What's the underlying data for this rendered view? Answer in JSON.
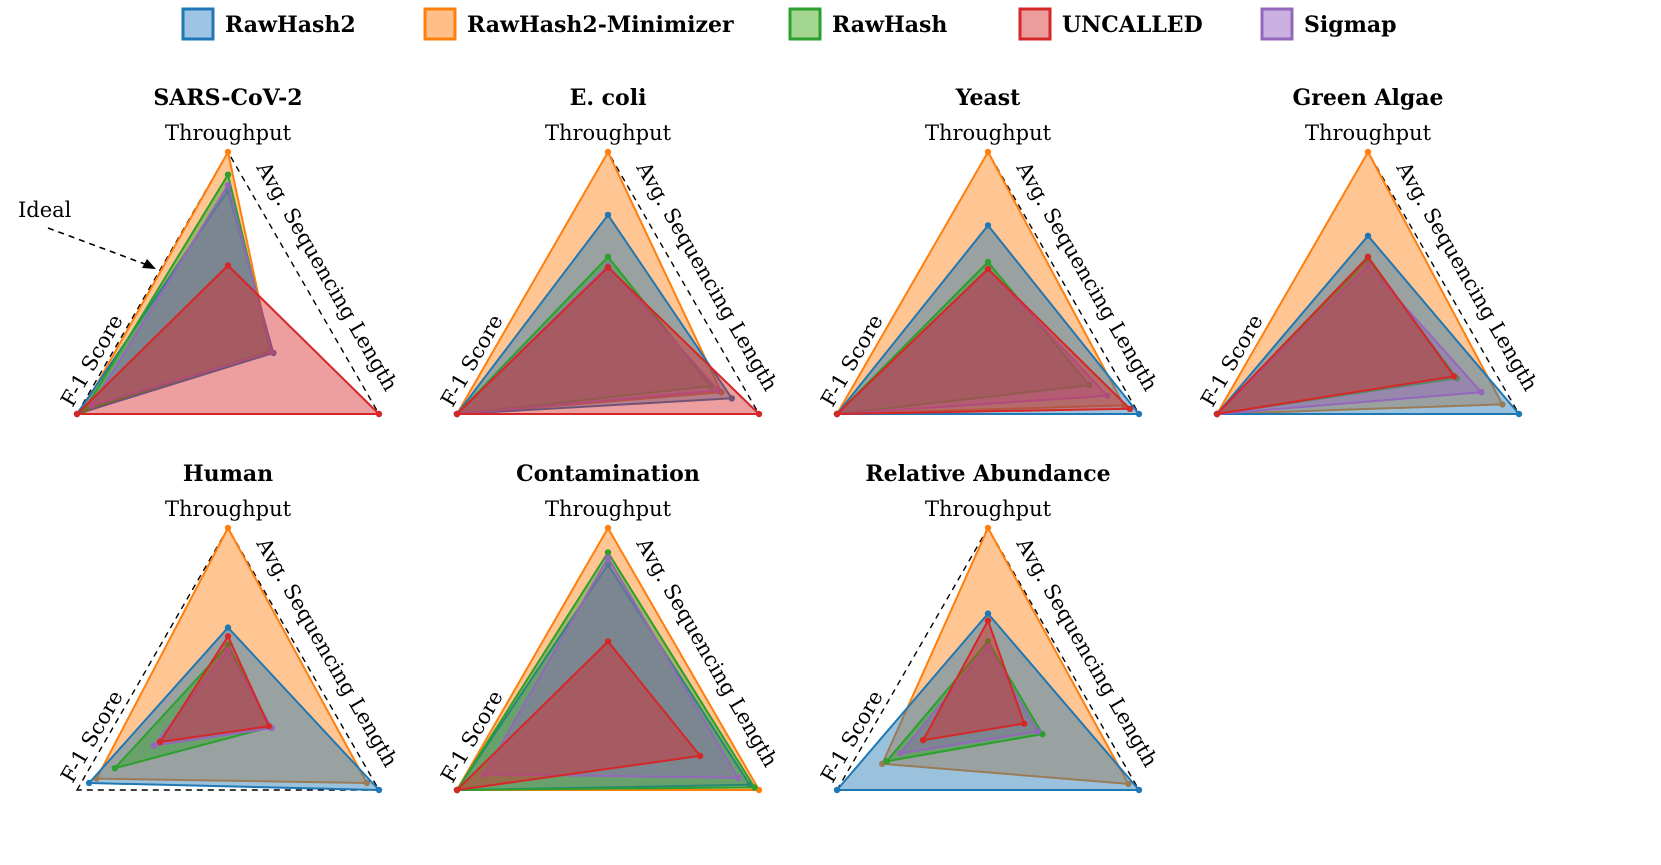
{
  "chart_data": {
    "type": "radar",
    "axes": [
      "Throughput",
      "Avg. Sequencing Length",
      "F-1 Score"
    ],
    "annotation": "Ideal",
    "legend": {
      "position": "top",
      "entries": [
        {
          "name": "RawHash2",
          "color": "#1f77b4",
          "fill": "#9ec4e3"
        },
        {
          "name": "RawHash2-Minimizer",
          "color": "#ff7f0e",
          "fill": "#ffbf86"
        },
        {
          "name": "RawHash",
          "color": "#2ca02c",
          "fill": "#a3d690"
        },
        {
          "name": "UNCALLED",
          "color": "#d62728",
          "fill": "#ec9c9c"
        },
        {
          "name": "Sigmap",
          "color": "#9467bd",
          "fill": "#c9b0e0"
        }
      ]
    },
    "panels": [
      {
        "title": "SARS-CoV-2",
        "series": [
          {
            "name": "RawHash2-Minimizer",
            "values": [
              1.0,
              0.28,
              0.97
            ]
          },
          {
            "name": "RawHash2",
            "values": [
              0.78,
              0.3,
              1.0
            ]
          },
          {
            "name": "RawHash",
            "values": [
              0.87,
              0.28,
              0.95
            ]
          },
          {
            "name": "Sigmap",
            "values": [
              0.81,
              0.29,
              0.9
            ]
          },
          {
            "name": "UNCALLED",
            "values": [
              0.35,
              1.0,
              1.0
            ]
          }
        ]
      },
      {
        "title": "E. coli",
        "series": [
          {
            "name": "RawHash2-Minimizer",
            "values": [
              1.0,
              0.75,
              1.0
            ]
          },
          {
            "name": "RawHash2",
            "values": [
              0.64,
              0.82,
              1.0
            ]
          },
          {
            "name": "RawHash",
            "values": [
              0.4,
              0.68,
              1.0
            ]
          },
          {
            "name": "Sigmap",
            "values": [
              0.35,
              0.73,
              1.0
            ]
          },
          {
            "name": "UNCALLED",
            "values": [
              0.34,
              1.0,
              1.0
            ]
          }
        ]
      },
      {
        "title": "Yeast",
        "series": [
          {
            "name": "RawHash2-Minimizer",
            "values": [
              1.0,
              0.9,
              1.0
            ]
          },
          {
            "name": "RawHash2",
            "values": [
              0.58,
              1.0,
              1.0
            ]
          },
          {
            "name": "RawHash",
            "values": [
              0.37,
              0.67,
              1.0
            ]
          },
          {
            "name": "Sigmap",
            "values": [
              0.33,
              0.79,
              1.0
            ]
          },
          {
            "name": "UNCALLED",
            "values": [
              0.33,
              0.94,
              1.0
            ]
          }
        ]
      },
      {
        "title": "Green Algae",
        "series": [
          {
            "name": "RawHash2-Minimizer",
            "values": [
              1.0,
              0.89,
              1.0
            ]
          },
          {
            "name": "RawHash2",
            "values": [
              0.52,
              1.0,
              1.0
            ]
          },
          {
            "name": "RawHash",
            "values": [
              0.39,
              0.59,
              1.0
            ]
          },
          {
            "name": "Sigmap",
            "values": [
              0.35,
              0.75,
              1.0
            ]
          },
          {
            "name": "UNCALLED",
            "values": [
              0.4,
              0.57,
              1.0
            ]
          }
        ]
      },
      {
        "title": "Human",
        "series": [
          {
            "name": "RawHash2-Minimizer",
            "values": [
              1.0,
              0.92,
              0.87
            ]
          },
          {
            "name": "RawHash2",
            "values": [
              0.43,
              1.0,
              0.92
            ]
          },
          {
            "name": "RawHash",
            "values": [
              0.33,
              0.28,
              0.75
            ]
          },
          {
            "name": "Sigmap",
            "values": [
              0.3,
              0.29,
              0.49
            ]
          },
          {
            "name": "UNCALLED",
            "values": [
              0.38,
              0.27,
              0.45
            ]
          }
        ]
      },
      {
        "title": "Contamination",
        "series": [
          {
            "name": "RawHash2-Minimizer",
            "values": [
              1.0,
              1.0,
              1.0
            ]
          },
          {
            "name": "RawHash2",
            "values": [
              0.79,
              0.94,
              1.0
            ]
          },
          {
            "name": "RawHash",
            "values": [
              0.86,
              0.97,
              1.0
            ]
          },
          {
            "name": "Sigmap",
            "values": [
              0.83,
              0.86,
              0.82
            ]
          },
          {
            "name": "UNCALLED",
            "values": [
              0.35,
              0.61,
              1.0
            ]
          }
        ]
      },
      {
        "title": "Relative Abundance",
        "series": [
          {
            "name": "RawHash2-Minimizer",
            "values": [
              1.0,
              0.93,
              0.7
            ]
          },
          {
            "name": "RawHash2",
            "values": [
              0.51,
              1.0,
              1.0
            ]
          },
          {
            "name": "RawHash",
            "values": [
              0.35,
              0.36,
              0.67
            ]
          },
          {
            "name": "Sigmap",
            "values": [
              0.32,
              0.33,
              0.58
            ]
          },
          {
            "name": "UNCALLED",
            "values": [
              0.47,
              0.24,
              0.43
            ]
          }
        ]
      }
    ]
  }
}
